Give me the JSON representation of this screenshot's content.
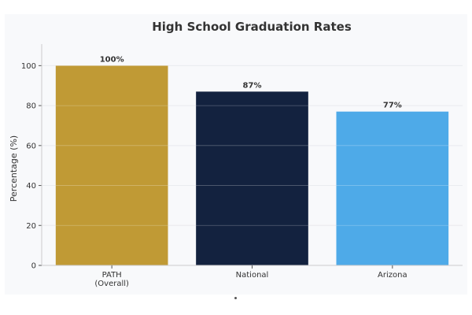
{
  "chart_data": {
    "type": "bar",
    "title": "High School Graduation Rates",
    "xlabel": "",
    "ylabel": "Percentage (%)",
    "categories": [
      [
        "PATH",
        "(Overall)"
      ],
      [
        "National"
      ],
      [
        "Arizona"
      ]
    ],
    "values": [
      100,
      87,
      77
    ],
    "value_labels": [
      "100%",
      "87%",
      "77%"
    ],
    "colors": [
      "#c09a35",
      "#13223f",
      "#4eaae8"
    ],
    "ylim": [
      0,
      110
    ],
    "yticks": [
      0,
      20,
      40,
      60,
      80,
      100
    ],
    "grid": true,
    "legend": "none"
  }
}
